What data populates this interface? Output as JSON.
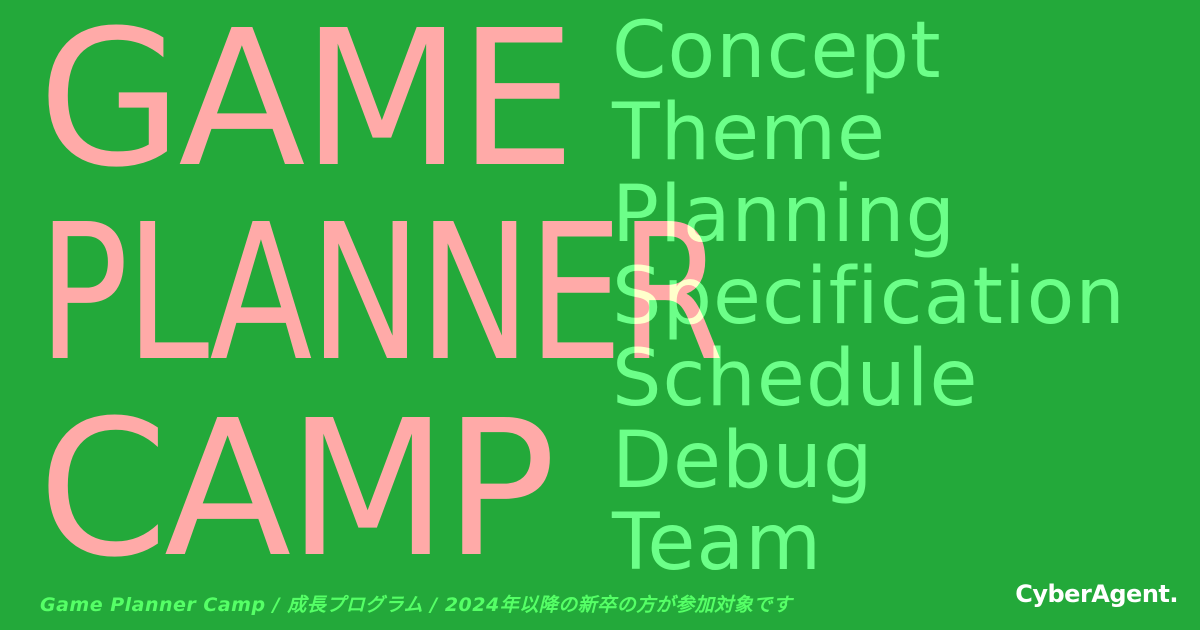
{
  "title": {
    "line1": "GAME",
    "line2": "PLANNER",
    "line3": "CAMP"
  },
  "keywords": [
    "Concept",
    "Theme",
    "Planning",
    "Specification",
    "Schedule",
    "Debug",
    "Team"
  ],
  "tagline": "Game Planner Camp / 成長プログラム / 2024年以降の新卒の方が参加対象です",
  "logo": "CyberAgent.",
  "colors": {
    "background": "#23a93a",
    "title": "#ffaaa8",
    "keywords": "#55ff66",
    "logo": "#ffffff"
  }
}
